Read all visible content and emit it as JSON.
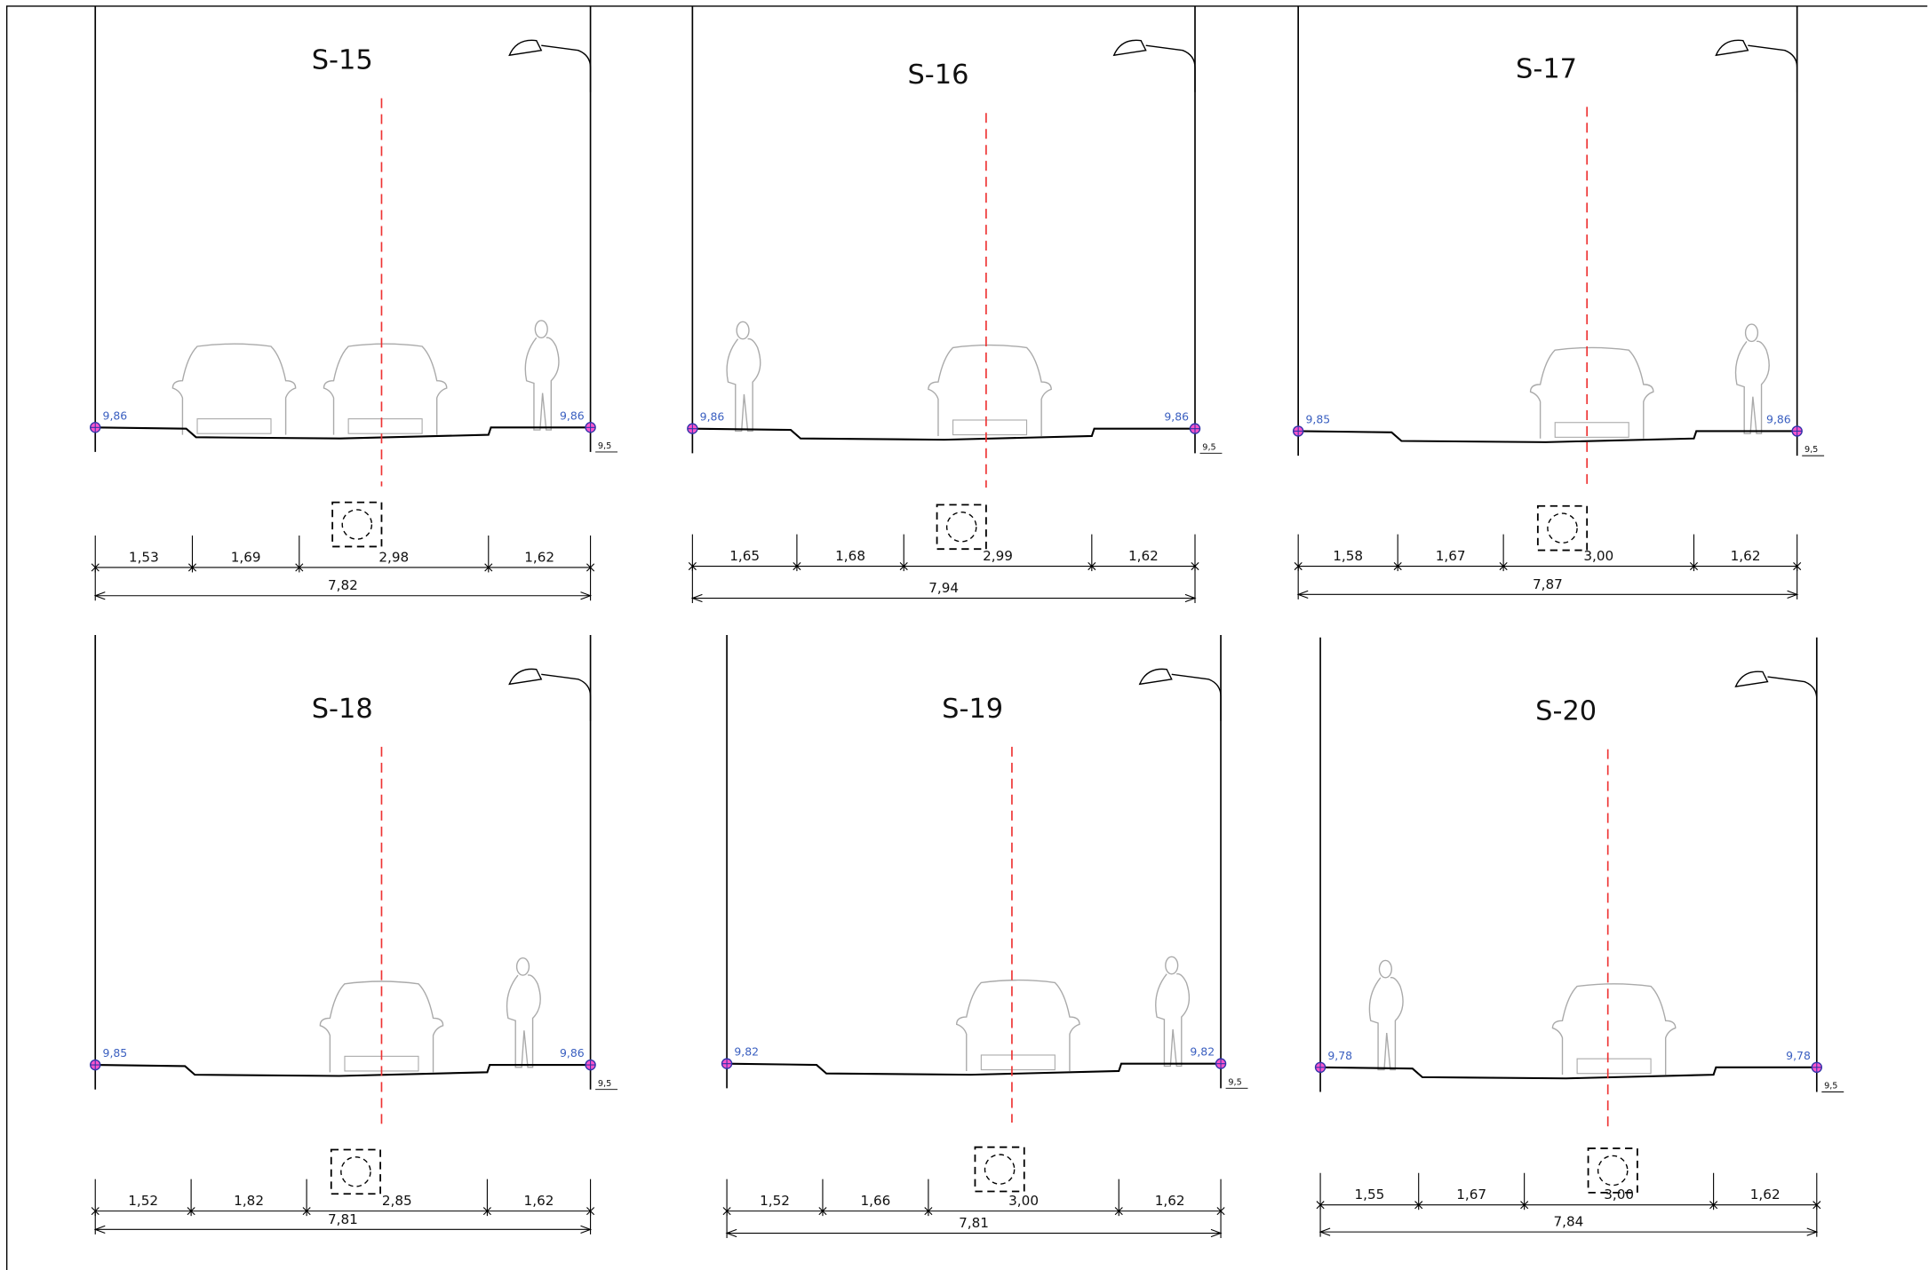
{
  "sections": [
    {
      "title": "S-15",
      "elev_left": "9,86",
      "elev_right": "9,86",
      "level": "9,5",
      "dims": [
        "1,53",
        "1,69",
        "2,98",
        "1,62"
      ],
      "total": "7,82"
    },
    {
      "title": "S-16",
      "elev_left": "9,86",
      "elev_right": "9,86",
      "level": "9,5",
      "dims": [
        "1,65",
        "1,68",
        "2,99",
        "1,62"
      ],
      "total": "7,94"
    },
    {
      "title": "S-17",
      "elev_left": "9,85",
      "elev_right": "9,86",
      "level": "9,5",
      "dims": [
        "1,58",
        "1,67",
        "3,00",
        "1,62"
      ],
      "total": "7,87"
    },
    {
      "title": "S-18",
      "elev_left": "9,85",
      "elev_right": "9,86",
      "level": "9,5",
      "dims": [
        "1,52",
        "1,82",
        "2,85",
        "1,62"
      ],
      "total": "7,81"
    },
    {
      "title": "S-19",
      "elev_left": "9,82",
      "elev_right": "9,82",
      "level": "9,5",
      "dims": [
        "1,52",
        "1,66",
        "3,00",
        "1,62"
      ],
      "total": "7,81"
    },
    {
      "title": "S-20",
      "elev_left": "9,78",
      "elev_right": "9,78",
      "level": "9,5",
      "dims": [
        "1,55",
        "1,67",
        "3,00",
        "1,62"
      ],
      "total": "7,84"
    }
  ]
}
